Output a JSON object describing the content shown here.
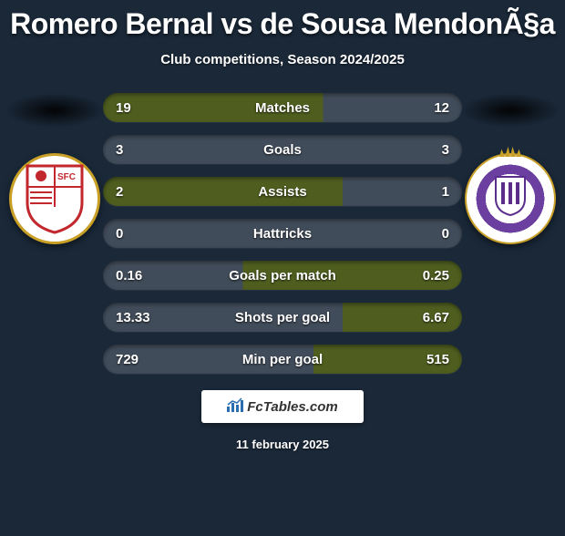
{
  "title": "Romero Bernal vs de Sousa MendonÃ§a",
  "subtitle": "Club competitions, Season 2024/2025",
  "footer": {
    "brand": "FcTables.com",
    "date": "11 february 2025"
  },
  "emblems": {
    "left_alt": "Sevilla",
    "right_alt": "Valladolid"
  },
  "colors": {
    "background": "#1a2838",
    "row_base": "#414c5a",
    "row_highlight": "#4f5e1f",
    "text": "#ffffff"
  },
  "stats": [
    {
      "label": "Matches",
      "left_val": "19",
      "right_val": "12",
      "left_ratio": 0.613,
      "right_ratio": 0.387,
      "left_wins": true,
      "right_wins": false
    },
    {
      "label": "Goals",
      "left_val": "3",
      "right_val": "3",
      "left_ratio": 0.5,
      "right_ratio": 0.5,
      "left_wins": false,
      "right_wins": false
    },
    {
      "label": "Assists",
      "left_val": "2",
      "right_val": "1",
      "left_ratio": 0.667,
      "right_ratio": 0.333,
      "left_wins": true,
      "right_wins": false
    },
    {
      "label": "Hattricks",
      "left_val": "0",
      "right_val": "0",
      "left_ratio": 0.5,
      "right_ratio": 0.5,
      "left_wins": false,
      "right_wins": false
    },
    {
      "label": "Goals per match",
      "left_val": "0.16",
      "right_val": "0.25",
      "left_ratio": 0.39,
      "right_ratio": 0.61,
      "left_wins": false,
      "right_wins": true
    },
    {
      "label": "Shots per goal",
      "left_val": "13.33",
      "right_val": "6.67",
      "left_ratio": 0.667,
      "right_ratio": 0.333,
      "left_wins": false,
      "right_wins": true
    },
    {
      "label": "Min per goal",
      "left_val": "729",
      "right_val": "515",
      "left_ratio": 0.586,
      "right_ratio": 0.414,
      "left_wins": false,
      "right_wins": true
    }
  ]
}
